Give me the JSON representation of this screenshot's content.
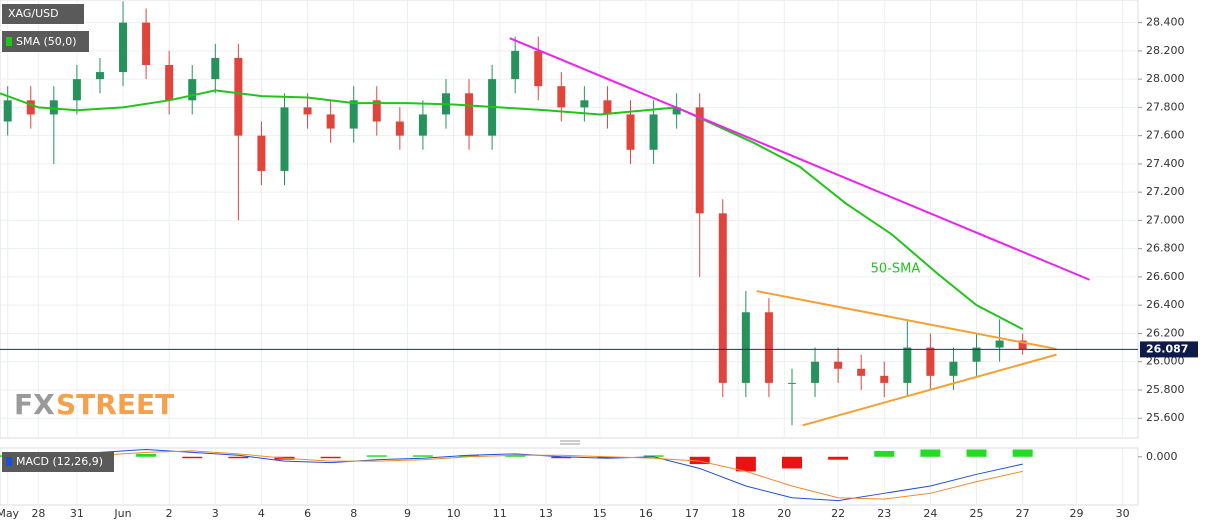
{
  "chart_data": {
    "type": "candlestick",
    "title": "XAG/USD",
    "indicator": "SMA (50,0)",
    "macd_title": "MACD (12,26,9)",
    "logo": [
      "FX",
      "STREET"
    ],
    "annotation": "50-SMA",
    "xlim": [
      0,
      148
    ],
    "xticks": [
      {
        "value": 1,
        "label": "May"
      },
      {
        "value": 5,
        "label": "28"
      },
      {
        "value": 10,
        "label": "31"
      },
      {
        "value": 16,
        "label": "Jun"
      },
      {
        "value": 22,
        "label": "2"
      },
      {
        "value": 28,
        "label": "3"
      },
      {
        "value": 34,
        "label": "4"
      },
      {
        "value": 40,
        "label": "6"
      },
      {
        "value": 46,
        "label": "8"
      },
      {
        "value": 53,
        "label": "9"
      },
      {
        "value": 59,
        "label": "10"
      },
      {
        "value": 65,
        "label": "11"
      },
      {
        "value": 71,
        "label": "13"
      },
      {
        "value": 78,
        "label": "15"
      },
      {
        "value": 84,
        "label": "16"
      },
      {
        "value": 90,
        "label": "17"
      },
      {
        "value": 96,
        "label": "18"
      },
      {
        "value": 102,
        "label": "20"
      },
      {
        "value": 109,
        "label": "22"
      },
      {
        "value": 115,
        "label": "23"
      },
      {
        "value": 121,
        "label": "24"
      },
      {
        "value": 127,
        "label": "25"
      },
      {
        "value": 133,
        "label": "27"
      },
      {
        "value": 140,
        "label": "29"
      },
      {
        "value": 146,
        "label": "30"
      }
    ],
    "ylim": [
      25.46,
      28.56
    ],
    "yticks": [
      {
        "value": 25.6,
        "label": "25.600"
      },
      {
        "value": 25.8,
        "label": "25.800"
      },
      {
        "value": 26.0,
        "label": "26.000"
      },
      {
        "value": 26.2,
        "label": "26.200"
      },
      {
        "value": 26.4,
        "label": "26.400"
      },
      {
        "value": 26.6,
        "label": "26.600"
      },
      {
        "value": 26.8,
        "label": "26.800"
      },
      {
        "value": 27.0,
        "label": "27.000"
      },
      {
        "value": 27.2,
        "label": "27.200"
      },
      {
        "value": 27.4,
        "label": "27.400"
      },
      {
        "value": 27.6,
        "label": "27.600"
      },
      {
        "value": 27.8,
        "label": "27.800"
      },
      {
        "value": 28.0,
        "label": "28.000"
      },
      {
        "value": 28.2,
        "label": "28.200"
      },
      {
        "value": 28.4,
        "label": "28.400"
      }
    ],
    "grid": true,
    "up_color": "#26935d",
    "down_color": "#e0453c",
    "x": [
      1,
      4,
      7,
      10,
      13,
      16,
      19,
      22,
      25,
      28,
      31,
      34,
      37,
      40,
      43,
      46,
      49,
      52,
      55,
      58,
      61,
      64,
      67,
      70,
      73,
      76,
      79,
      82,
      85,
      88,
      91,
      94,
      97,
      100,
      103,
      106,
      109,
      112,
      115,
      118,
      121,
      124,
      127,
      130,
      133
    ],
    "open": [
      27.7,
      27.85,
      27.75,
      27.85,
      28.0,
      28.05,
      28.4,
      28.1,
      27.85,
      28.0,
      28.15,
      27.6,
      27.35,
      27.8,
      27.75,
      27.65,
      27.85,
      27.7,
      27.6,
      27.75,
      27.9,
      27.6,
      28.0,
      28.2,
      27.95,
      27.8,
      27.85,
      27.75,
      27.5,
      27.75,
      27.8,
      27.05,
      25.85,
      26.35,
      25.85,
      25.85,
      26.0,
      25.95,
      25.9,
      25.85,
      26.1,
      25.9,
      26.0,
      26.1,
      26.15
    ],
    "high": [
      27.95,
      27.95,
      27.95,
      28.1,
      28.15,
      28.55,
      28.5,
      28.2,
      28.1,
      28.25,
      28.25,
      27.7,
      27.9,
      27.9,
      27.85,
      27.95,
      27.95,
      27.8,
      27.85,
      28.0,
      28.0,
      28.1,
      28.3,
      28.3,
      28.05,
      27.95,
      27.95,
      27.85,
      27.85,
      27.9,
      27.9,
      27.15,
      26.5,
      26.45,
      25.95,
      26.1,
      26.1,
      26.05,
      26.0,
      26.3,
      26.2,
      26.1,
      26.2,
      26.3,
      26.2
    ],
    "low": [
      27.6,
      27.65,
      27.4,
      27.75,
      27.9,
      27.95,
      28.0,
      27.75,
      27.75,
      27.9,
      27.0,
      27.25,
      27.25,
      27.65,
      27.55,
      27.55,
      27.6,
      27.5,
      27.5,
      27.65,
      27.5,
      27.5,
      27.9,
      27.85,
      27.7,
      27.7,
      27.65,
      27.4,
      27.4,
      27.65,
      26.6,
      25.75,
      25.75,
      25.75,
      25.55,
      25.75,
      25.85,
      25.8,
      25.75,
      25.75,
      25.8,
      25.8,
      25.9,
      26.0,
      26.05
    ],
    "close": [
      27.85,
      27.75,
      27.85,
      28.0,
      28.05,
      28.4,
      28.1,
      27.85,
      28.0,
      28.15,
      27.6,
      27.35,
      27.8,
      27.75,
      27.65,
      27.85,
      27.7,
      27.6,
      27.75,
      27.9,
      27.6,
      28.0,
      28.2,
      27.95,
      27.8,
      27.85,
      27.75,
      27.5,
      27.75,
      27.8,
      27.05,
      25.85,
      26.35,
      25.85,
      25.85,
      26.0,
      25.95,
      25.9,
      25.85,
      26.1,
      25.9,
      26.0,
      26.1,
      26.15,
      26.09
    ],
    "sma": {
      "color": "#22c41c",
      "x": [
        0,
        5,
        10,
        16,
        22,
        28,
        34,
        40,
        46,
        53,
        59,
        65,
        71,
        78,
        84,
        88,
        92,
        98,
        104,
        110,
        116,
        122,
        127,
        133
      ],
      "values": [
        27.9,
        27.8,
        27.78,
        27.8,
        27.85,
        27.92,
        27.88,
        27.87,
        27.83,
        27.83,
        27.82,
        27.8,
        27.78,
        27.75,
        27.78,
        27.8,
        27.7,
        27.55,
        27.38,
        27.12,
        26.9,
        26.62,
        26.4,
        26.23
      ]
    },
    "trendlines": [
      {
        "color": "#ee22ee",
        "x": [
          66.3,
          141.7
        ],
        "values": [
          28.29,
          26.58
        ]
      },
      {
        "color": "#f5a030",
        "x": [
          98.4,
          137.4
        ],
        "values": [
          26.5,
          26.09
        ]
      },
      {
        "color": "#f5a030",
        "x": [
          104.4,
          137.4
        ],
        "values": [
          25.55,
          26.05
        ]
      }
    ],
    "current_price": {
      "value": 26.087,
      "label": "26.087"
    },
    "macd": {
      "ylim": [
        -0.33,
        0.06
      ],
      "yticks": [
        {
          "value": 0,
          "label": "0.000"
        }
      ],
      "x": [
        1,
        7,
        13,
        19,
        25,
        31,
        37,
        43,
        49,
        55,
        61,
        67,
        73,
        79,
        85,
        91,
        97,
        103,
        109,
        115,
        121,
        127,
        133
      ],
      "macd_color": "#1f4fd8",
      "signal_color": "#f08a30",
      "hist_up_color": "#22dd22",
      "hist_down_color": "#ee1111",
      "macd": [
        0.01,
        0.0,
        0.03,
        0.05,
        0.03,
        0.01,
        -0.03,
        -0.04,
        -0.02,
        -0.01,
        0.01,
        0.02,
        0.0,
        -0.01,
        0.0,
        -0.08,
        -0.2,
        -0.28,
        -0.3,
        -0.25,
        -0.2,
        -0.12,
        -0.05
      ],
      "signal": [
        0.0,
        0.0,
        0.01,
        0.03,
        0.04,
        0.02,
        -0.01,
        -0.03,
        -0.03,
        -0.02,
        0.0,
        0.01,
        0.01,
        0.0,
        -0.01,
        -0.03,
        -0.1,
        -0.2,
        -0.28,
        -0.29,
        -0.25,
        -0.17,
        -0.1
      ],
      "histogram": [
        0.01,
        0.0,
        0.02,
        0.02,
        -0.01,
        -0.01,
        -0.02,
        -0.01,
        0.01,
        0.01,
        0.01,
        0.01,
        -0.01,
        -0.01,
        0.01,
        -0.05,
        -0.1,
        -0.08,
        -0.02,
        0.04,
        0.05,
        0.05,
        0.05
      ]
    }
  }
}
